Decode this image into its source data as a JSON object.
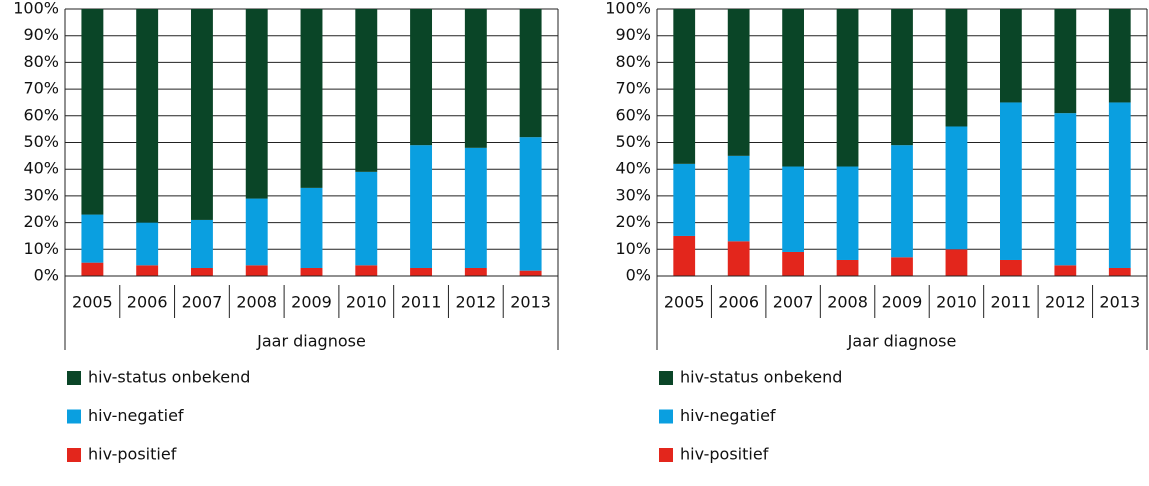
{
  "chart_data": [
    {
      "type": "stacked-bar",
      "xlabel": "Jaar diagnose",
      "categories": [
        "2005",
        "2006",
        "2007",
        "2008",
        "2009",
        "2010",
        "2011",
        "2012",
        "2013"
      ],
      "series": [
        {
          "name": "hiv-positief",
          "color": "#e3261c",
          "values": [
            5,
            4,
            3,
            4,
            3,
            4,
            3,
            3,
            2
          ]
        },
        {
          "name": "hiv-negatief",
          "color": "#0a9fe0",
          "values": [
            18,
            16,
            18,
            25,
            30,
            35,
            46,
            45,
            50
          ]
        },
        {
          "name": "hiv-status onbekend",
          "color": "#0a4527",
          "values": [
            77,
            80,
            79,
            71,
            67,
            61,
            51,
            52,
            48
          ]
        }
      ],
      "ylim": [
        0,
        100
      ],
      "yticks": [
        {
          "value": 0,
          "label": "0%"
        },
        {
          "value": 10,
          "label": "10%"
        },
        {
          "value": 20,
          "label": "20%"
        },
        {
          "value": 30,
          "label": "30%"
        },
        {
          "value": 40,
          "label": "40%"
        },
        {
          "value": 50,
          "label": "50%"
        },
        {
          "value": 60,
          "label": "60%"
        },
        {
          "value": 70,
          "label": "70%"
        },
        {
          "value": 80,
          "label": "80%"
        },
        {
          "value": 90,
          "label": "90%"
        },
        {
          "value": 100,
          "label": "100%"
        }
      ],
      "grid": true
    },
    {
      "type": "stacked-bar",
      "xlabel": "Jaar diagnose",
      "categories": [
        "2005",
        "2006",
        "2007",
        "2008",
        "2009",
        "2010",
        "2011",
        "2012",
        "2013"
      ],
      "series": [
        {
          "name": "hiv-positief",
          "color": "#e3261c",
          "values": [
            15,
            13,
            9,
            6,
            7,
            10,
            6,
            4,
            3
          ]
        },
        {
          "name": "hiv-negatief",
          "color": "#0a9fe0",
          "values": [
            27,
            32,
            32,
            35,
            42,
            46,
            59,
            57,
            62
          ]
        },
        {
          "name": "hiv-status onbekend",
          "color": "#0a4527",
          "values": [
            58,
            55,
            59,
            59,
            51,
            44,
            35,
            39,
            35
          ]
        }
      ],
      "ylim": [
        0,
        100
      ],
      "yticks": [
        {
          "value": 0,
          "label": "0%"
        },
        {
          "value": 10,
          "label": "10%"
        },
        {
          "value": 20,
          "label": "20%"
        },
        {
          "value": 30,
          "label": "30%"
        },
        {
          "value": 40,
          "label": "40%"
        },
        {
          "value": 50,
          "label": "50%"
        },
        {
          "value": 60,
          "label": "60%"
        },
        {
          "value": 70,
          "label": "70%"
        },
        {
          "value": 80,
          "label": "80%"
        },
        {
          "value": 90,
          "label": "90%"
        },
        {
          "value": 100,
          "label": "100%"
        }
      ],
      "grid": true
    }
  ]
}
